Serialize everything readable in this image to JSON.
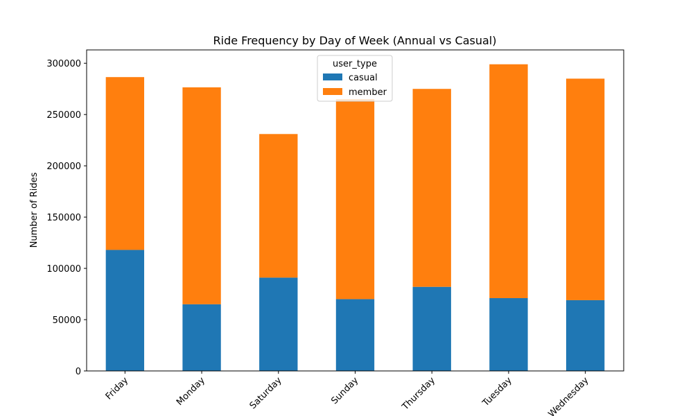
{
  "chart_data": {
    "type": "bar",
    "stacked": true,
    "title": "Ride Frequency by Day of Week (Annual vs Casual)",
    "xlabel": "",
    "ylabel": "Number of Rides",
    "categories": [
      "Friday",
      "Monday",
      "Saturday",
      "Sunday",
      "Thursday",
      "Tuesday",
      "Wednesday"
    ],
    "series": [
      {
        "name": "casual",
        "color": "#1f77b4",
        "values": [
          118000,
          65000,
          91000,
          70000,
          82000,
          71000,
          69000
        ]
      },
      {
        "name": "member",
        "color": "#ff7f0e",
        "values": [
          168500,
          211500,
          140000,
          195000,
          193000,
          228000,
          216000
        ]
      }
    ],
    "ylim": [
      0,
      313000
    ],
    "yticks": [
      0,
      50000,
      100000,
      150000,
      200000,
      250000,
      300000
    ],
    "legend": {
      "title": "user_type",
      "position": "top-center"
    },
    "grid": false
  }
}
